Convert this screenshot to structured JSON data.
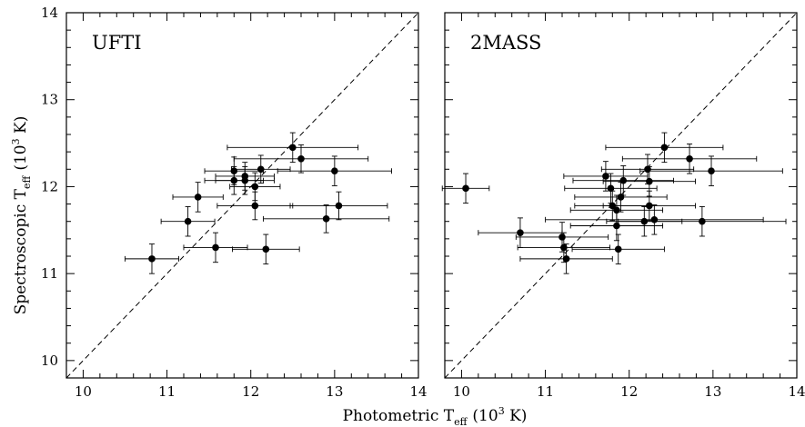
{
  "chart_data": {
    "type": "scatter",
    "shared_xlabel": {
      "main": "Photometric T",
      "sub": "eff",
      "unit_open": "(10",
      "exp": "3",
      "unit_close": " K)"
    },
    "shared_ylabel": {
      "main": "Spectroscopic T",
      "sub": "eff",
      "unit_open": "(10",
      "exp": "3",
      "unit_close": " K)"
    },
    "panels": [
      {
        "label": "UFTI",
        "xlim": [
          9.8,
          14
        ],
        "ylim": [
          9.8,
          14
        ],
        "xticks": [
          10,
          11,
          12,
          13,
          14
        ],
        "yticks": [
          10,
          11,
          12,
          13,
          14
        ],
        "reference_line": "y = x (dashed)",
        "points": [
          {
            "x": 10.82,
            "y": 11.17,
            "xerr": 0.32,
            "yerr": 0.17
          },
          {
            "x": 11.25,
            "y": 11.6,
            "xerr": 0.32,
            "yerr": 0.17
          },
          {
            "x": 11.37,
            "y": 11.88,
            "xerr": 0.3,
            "yerr": 0.17
          },
          {
            "x": 11.58,
            "y": 11.3,
            "xerr": 0.38,
            "yerr": 0.17
          },
          {
            "x": 11.8,
            "y": 12.18,
            "xerr": 0.35,
            "yerr": 0.16
          },
          {
            "x": 11.8,
            "y": 12.07,
            "xerr": 0.35,
            "yerr": 0.16
          },
          {
            "x": 11.93,
            "y": 12.12,
            "xerr": 0.35,
            "yerr": 0.16
          },
          {
            "x": 11.93,
            "y": 12.07,
            "xerr": 0.35,
            "yerr": 0.16
          },
          {
            "x": 12.05,
            "y": 12.0,
            "xerr": 0.3,
            "yerr": 0.16
          },
          {
            "x": 12.05,
            "y": 11.78,
            "xerr": 0.45,
            "yerr": 0.16
          },
          {
            "x": 12.12,
            "y": 12.2,
            "xerr": 0.35,
            "yerr": 0.16
          },
          {
            "x": 12.18,
            "y": 11.28,
            "xerr": 0.4,
            "yerr": 0.17
          },
          {
            "x": 12.5,
            "y": 12.45,
            "xerr": 0.78,
            "yerr": 0.17
          },
          {
            "x": 12.6,
            "y": 12.32,
            "xerr": 0.8,
            "yerr": 0.16
          },
          {
            "x": 12.9,
            "y": 11.63,
            "xerr": 0.75,
            "yerr": 0.16
          },
          {
            "x": 13.0,
            "y": 12.18,
            "xerr": 0.68,
            "yerr": 0.17
          },
          {
            "x": 13.05,
            "y": 11.78,
            "xerr": 0.58,
            "yerr": 0.16
          }
        ]
      },
      {
        "label": "2MASS",
        "xlim": [
          9.8,
          14
        ],
        "ylim": [
          9.8,
          14
        ],
        "xticks": [
          10,
          11,
          12,
          13,
          14
        ],
        "yticks": [
          10,
          11,
          12,
          13,
          14
        ],
        "reference_line": "y = x (dashed)",
        "points": [
          {
            "x": 10.05,
            "y": 11.98,
            "xerr": 0.28,
            "yerr": 0.17
          },
          {
            "x": 10.7,
            "y": 11.47,
            "xerr": 0.5,
            "yerr": 0.17
          },
          {
            "x": 11.2,
            "y": 11.42,
            "xerr": 0.55,
            "yerr": 0.17
          },
          {
            "x": 11.22,
            "y": 11.3,
            "xerr": 0.55,
            "yerr": 0.17
          },
          {
            "x": 11.25,
            "y": 11.17,
            "xerr": 0.55,
            "yerr": 0.17
          },
          {
            "x": 11.72,
            "y": 12.12,
            "xerr": 0.5,
            "yerr": 0.17
          },
          {
            "x": 11.78,
            "y": 11.98,
            "xerr": 0.55,
            "yerr": 0.17
          },
          {
            "x": 11.8,
            "y": 11.78,
            "xerr": 0.45,
            "yerr": 0.17
          },
          {
            "x": 11.85,
            "y": 11.55,
            "xerr": 0.55,
            "yerr": 0.17
          },
          {
            "x": 11.85,
            "y": 11.73,
            "xerr": 0.55,
            "yerr": 0.17
          },
          {
            "x": 11.87,
            "y": 11.28,
            "xerr": 0.55,
            "yerr": 0.17
          },
          {
            "x": 11.9,
            "y": 11.88,
            "xerr": 0.55,
            "yerr": 0.17
          },
          {
            "x": 11.93,
            "y": 12.07,
            "xerr": 0.6,
            "yerr": 0.17
          },
          {
            "x": 12.18,
            "y": 11.6,
            "xerr": 0.45,
            "yerr": 0.17
          },
          {
            "x": 12.22,
            "y": 12.2,
            "xerr": 0.55,
            "yerr": 0.17
          },
          {
            "x": 12.24,
            "y": 12.06,
            "xerr": 0.55,
            "yerr": 0.17
          },
          {
            "x": 12.24,
            "y": 11.78,
            "xerr": 0.55,
            "yerr": 0.17
          },
          {
            "x": 12.3,
            "y": 11.62,
            "xerr": 1.3,
            "yerr": 0.17
          },
          {
            "x": 12.42,
            "y": 12.45,
            "xerr": 0.7,
            "yerr": 0.17
          },
          {
            "x": 12.72,
            "y": 12.32,
            "xerr": 0.8,
            "yerr": 0.17
          },
          {
            "x": 12.87,
            "y": 11.6,
            "xerr": 1.0,
            "yerr": 0.17
          },
          {
            "x": 12.98,
            "y": 12.18,
            "xerr": 0.85,
            "yerr": 0.17
          }
        ]
      }
    ]
  }
}
